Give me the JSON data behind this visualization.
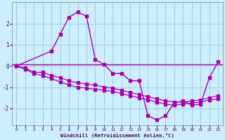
{
  "background_color": "#cceeff",
  "grid_color": "#99cccc",
  "line_color": "#aa00aa",
  "xlabel": "Windchill (Refroidissement éolien,°C)",
  "xlim": [
    -0.5,
    23.5
  ],
  "ylim": [
    -2.8,
    3.0
  ],
  "yticks": [
    -2,
    -1,
    0,
    1,
    2
  ],
  "xticks": [
    0,
    1,
    2,
    3,
    4,
    5,
    6,
    7,
    8,
    9,
    10,
    11,
    12,
    13,
    14,
    15,
    16,
    17,
    18,
    19,
    20,
    21,
    22,
    23
  ],
  "hline_y": 0.07,
  "series_spike_x": [
    0,
    4,
    5,
    6,
    7,
    8,
    9,
    10,
    11,
    12,
    13,
    14,
    15,
    16,
    17,
    18,
    19,
    20,
    21,
    22,
    23
  ],
  "series_spike_y": [
    0.0,
    0.7,
    1.5,
    2.3,
    2.55,
    2.35,
    0.3,
    0.07,
    -0.35,
    -0.35,
    -0.7,
    -0.7,
    -2.35,
    -2.55,
    -2.35,
    -1.75,
    -1.65,
    -1.85,
    -1.8,
    -0.55,
    0.2
  ],
  "series_upper_x": [
    0,
    1,
    2,
    3,
    4,
    5,
    6,
    7,
    8,
    9,
    10,
    11,
    12,
    13,
    14,
    15,
    16,
    17,
    18,
    19,
    20,
    21,
    22,
    23
  ],
  "series_upper_y": [
    0.0,
    -0.1,
    -0.3,
    -0.3,
    -0.45,
    -0.55,
    -0.7,
    -0.8,
    -0.85,
    -0.9,
    -1.0,
    -1.05,
    -1.15,
    -1.25,
    -1.35,
    -1.45,
    -1.55,
    -1.65,
    -1.7,
    -1.7,
    -1.65,
    -1.6,
    -1.5,
    -1.4
  ],
  "series_lower_x": [
    0,
    1,
    2,
    3,
    4,
    5,
    6,
    7,
    8,
    9,
    10,
    11,
    12,
    13,
    14,
    15,
    16,
    17,
    18,
    19,
    20,
    21,
    22,
    23
  ],
  "series_lower_y": [
    0.0,
    -0.15,
    -0.35,
    -0.45,
    -0.6,
    -0.75,
    -0.9,
    -1.0,
    -1.05,
    -1.1,
    -1.15,
    -1.2,
    -1.3,
    -1.4,
    -1.5,
    -1.6,
    -1.7,
    -1.8,
    -1.85,
    -1.8,
    -1.75,
    -1.7,
    -1.6,
    -1.55
  ]
}
